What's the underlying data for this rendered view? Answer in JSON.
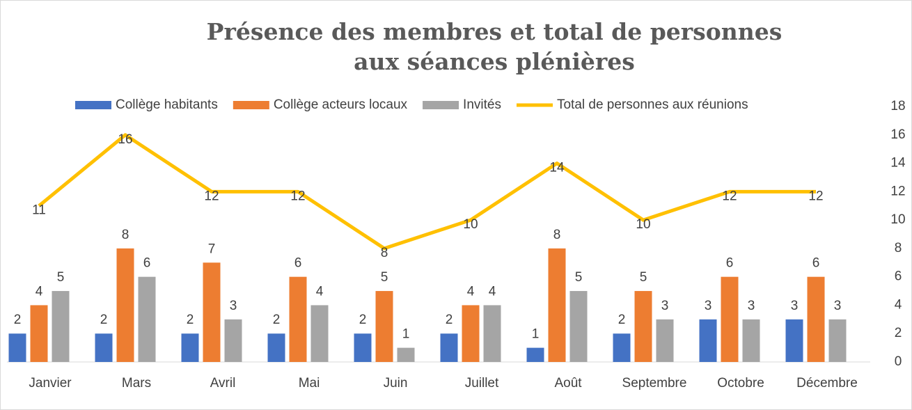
{
  "chart_data": {
    "type": "bar",
    "title": "Présence des membres et total de personnes aux séances plénières",
    "categories": [
      "Janvier",
      "Mars",
      "Avril",
      "Mai",
      "Juin",
      "Juillet",
      "Août",
      "Septembre",
      "Octobre",
      "Décembre"
    ],
    "series": [
      {
        "name": "Collège habitants",
        "color": "#4472c4",
        "values": [
          2,
          2,
          2,
          2,
          2,
          2,
          1,
          2,
          3,
          3
        ]
      },
      {
        "name": "Collège acteurs locaux",
        "color": "#ed7d31",
        "values": [
          4,
          8,
          7,
          6,
          5,
          4,
          8,
          5,
          6,
          6
        ]
      },
      {
        "name": "Invités",
        "color": "#a5a5a5",
        "values": [
          5,
          6,
          3,
          4,
          1,
          4,
          5,
          3,
          3,
          3
        ]
      },
      {
        "name": "Total de personnes aux réunions",
        "color": "#ffc000",
        "type": "line",
        "values": [
          11,
          16,
          12,
          12,
          8,
          10,
          14,
          10,
          12,
          12
        ]
      }
    ],
    "ylim": [
      0,
      18
    ],
    "yticks": [
      0,
      2,
      4,
      6,
      8,
      10,
      12,
      14,
      16,
      18
    ],
    "y_axis_side": "right",
    "legend": "top",
    "data_labels": true
  }
}
